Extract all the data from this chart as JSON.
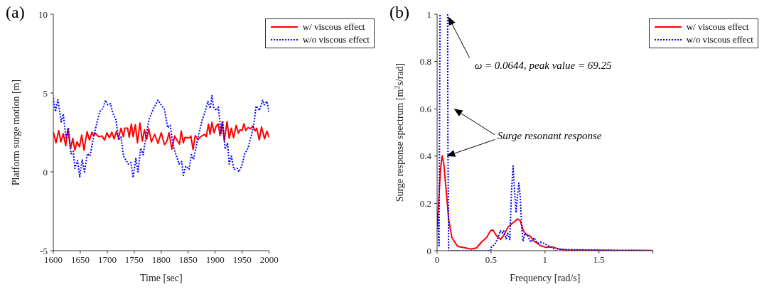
{
  "chart_data": [
    {
      "type": "line",
      "title": "(a)",
      "xlabel": "Time [sec]",
      "ylabel": "Platform surge motion [m]",
      "xlim": [
        1600,
        2000
      ],
      "xticks": [
        1600,
        1650,
        1700,
        1750,
        1800,
        1850,
        1900,
        1950,
        2000
      ],
      "ylim": [
        -5,
        10
      ],
      "yticks": [
        -5,
        0,
        5,
        10
      ],
      "grid": false,
      "legend": "top right",
      "marker": "none",
      "series": [
        {
          "name": "w/ viscous effect",
          "color": "#ff0000",
          "line_style": "solid",
          "x": [
            1600,
            1605,
            1610,
            1614,
            1618.5,
            1623,
            1627,
            1632,
            1636,
            1640,
            1644,
            1648.6,
            1652.6,
            1657,
            1662.6,
            1667,
            1671.7,
            1675,
            1678,
            1684,
            1690,
            1695,
            1699.5,
            1704,
            1708.5,
            1712.6,
            1717,
            1721,
            1725.5,
            1730,
            1732.5,
            1737.7,
            1740.7,
            1744.7,
            1748,
            1752,
            1756,
            1760.5,
            1765,
            1769,
            1773,
            1777,
            1781.7,
            1788,
            1794,
            1800,
            1806,
            1810.6,
            1814.5,
            1819.7,
            1825,
            1829,
            1834,
            1837,
            1841,
            1844,
            1853,
            1855,
            1859,
            1863,
            1868,
            1873,
            1880.5,
            1883.5,
            1887.5,
            1890.5,
            1894,
            1898,
            1902,
            1905.7,
            1909,
            1913,
            1917,
            1922,
            1926,
            1930,
            1934,
            1939,
            1943,
            1946,
            1949.5,
            1953.4,
            1956.5,
            1961,
            1965.6,
            1970,
            1974,
            1977,
            1981.7,
            1986,
            1991.4,
            1996,
            2000
          ],
          "values": [
            2.52,
            1.84,
            2.62,
            1.9,
            2.42,
            1.66,
            2.74,
            1.47,
            2.13,
            1.37,
            1.9,
            1.59,
            2.33,
            1.37,
            2.56,
            2.02,
            2.52,
            2.28,
            2.45,
            2.23,
            2.28,
            2.02,
            2.48,
            2.16,
            2.52,
            2.09,
            2.56,
            2.16,
            2.77,
            2.23,
            2.77,
            2.77,
            2.19,
            3.05,
            2.23,
            3.0,
            1.84,
            3.1,
            1.95,
            2.67,
            2.05,
            2.74,
            1.9,
            2.38,
            1.8,
            2.48,
            1.73,
            1.95,
            2.48,
            1.44,
            2.28,
            2.02,
            1.76,
            2.59,
            1.84,
            2.19,
            2.16,
            2.28,
            1.41,
            2.3,
            2.05,
            2.23,
            2.38,
            2.23,
            3.03,
            2.38,
            3.14,
            2.48,
            2.91,
            3.05,
            2.3,
            3.14,
            1.95,
            3.2,
            2.13,
            2.77,
            2.16,
            2.95,
            2.45,
            2.67,
            2.62,
            3.05,
            2.62,
            2.81,
            2.74,
            2.91,
            2.59,
            2.77,
            2.02,
            2.85,
            2.09,
            2.59,
            2.16
          ]
        },
        {
          "name": "w/o viscous effect",
          "color": "#0000ff",
          "line_style": "dotted",
          "x": [
            1600,
            1604,
            1608.5,
            1614.6,
            1618.5,
            1623.7,
            1628,
            1632.8,
            1637,
            1640,
            1645,
            1649,
            1653.5,
            1657.8,
            1663,
            1668,
            1675,
            1686,
            1692,
            1696.6,
            1701,
            1706,
            1710,
            1716,
            1721,
            1725.5,
            1730,
            1739,
            1744,
            1748,
            1753,
            1757,
            1762,
            1766.6,
            1772.6,
            1778,
            1786,
            1794,
            1800,
            1806,
            1812,
            1816.6,
            1822.7,
            1833,
            1838,
            1841,
            1845.5,
            1851.6,
            1856,
            1860,
            1867,
            1876,
            1882,
            1886.5,
            1891,
            1894,
            1897,
            1902,
            1906,
            1911,
            1914,
            1918.5,
            1923,
            1926,
            1930,
            1935,
            1941,
            1944,
            1949,
            1955,
            1961,
            1967,
            1971.6,
            1976,
            1982,
            1988,
            1991,
            1996,
            2000
          ],
          "values": [
            4.68,
            3.82,
            4.58,
            3.17,
            3.67,
            2.09,
            2.81,
            1.15,
            1.3,
            0.22,
            0.72,
            -0.32,
            0.75,
            0,
            1.15,
            1.0,
            2.3,
            3.82,
            4.03,
            4.54,
            4.25,
            4.32,
            3.75,
            3.31,
            2.02,
            2.23,
            1.0,
            0.5,
            0.6,
            -0.36,
            0.86,
            0,
            1.51,
            1.08,
            2.45,
            3.39,
            4.03,
            4.54,
            4.25,
            3.96,
            2.8,
            2.95,
            1.59,
            0.5,
            0.65,
            -0.22,
            0.36,
            0.17,
            1.08,
            0.79,
            2.02,
            3.31,
            3.89,
            4.47,
            4.03,
            4.83,
            4.11,
            3.89,
            4.11,
            2.45,
            3.24,
            1.44,
            1.8,
            0.5,
            1.0,
            0.14,
            0.22,
            0,
            0.36,
            1.15,
            1.51,
            2.3,
            3.03,
            4.18,
            3.89,
            4.54,
            4.25,
            4.47,
            3.75
          ]
        }
      ]
    },
    {
      "type": "line",
      "title": "(b)",
      "xlabel": "Frequency [rad/s]",
      "ylabel": "Surge response spectrum [m$^{2}$s/rad]",
      "xlim": [
        0,
        2
      ],
      "xticks": [
        0,
        0.5,
        1,
        1.5,
        {
          "value": 2,
          "label": null
        }
      ],
      "ylim": [
        0,
        1
      ],
      "yticks": [
        0,
        0.2,
        0.4,
        0.6,
        0.8,
        1
      ],
      "grid": false,
      "legend": "top right",
      "marker": "none",
      "annotations": [
        "ω = 0.0644, peak value = 69.25",
        "Surge resonant response"
      ],
      "series": [
        {
          "name": "w/ viscous effect",
          "color": "#ff0000",
          "line_style": "solid",
          "x": [
            0,
            0.015,
            0.03,
            0.046,
            0.061,
            0.084,
            0.107,
            0.137,
            0.19,
            0.26,
            0.32,
            0.366,
            0.41,
            0.457,
            0.495,
            0.518,
            0.549,
            0.587,
            0.617,
            0.655,
            0.701,
            0.747,
            0.77,
            0.8,
            0.823,
            0.861,
            0.9,
            0.96,
            1.006,
            1.067,
            1.128,
            1.2,
            1.4,
            1.7,
            2
          ],
          "values": [
            0.103,
            0.209,
            0.334,
            0.401,
            0.372,
            0.257,
            0.132,
            0.055,
            0.018,
            0.012,
            0.007,
            0.012,
            0.036,
            0.055,
            0.084,
            0.088,
            0.064,
            0.048,
            0.064,
            0.098,
            0.117,
            0.134,
            0.127,
            0.084,
            0.069,
            0.062,
            0.04,
            0.021,
            0.014,
            0.016,
            0.007,
            0.003,
            0.002,
            0.001,
            0.001
          ]
        },
        {
          "name": "w/o viscous effect",
          "color": "#0000ff",
          "line_style": "dotted",
          "x": [
            0,
            0.003,
            0.018,
            0.027,
            0.0644,
            0.097,
            0.1,
            0.107,
            0.3,
            0.495,
            0.503,
            0.534,
            0.564,
            0.587,
            0.602,
            0.617,
            0.64,
            0.655,
            0.674,
            0.689,
            0.704,
            0.716,
            0.732,
            0.744,
            0.758,
            0.77,
            0.785,
            0.796,
            0.815,
            0.838,
            0.869,
            0.9,
            0.93,
            0.96,
            0.99,
            1.03,
            1.07,
            1.1,
            1.12,
            1.15,
            1.27,
            1.57,
            1.97
          ],
          "values": [
            0.09,
            0.16,
            0.016,
            1,
            null,
            1,
            0.48,
            0,
            0,
            0,
            0.016,
            0.026,
            0.055,
            0.084,
            0.074,
            0.084,
            0.05,
            0.074,
            0.047,
            0.247,
            0.358,
            0.266,
            0.16,
            0.228,
            0.286,
            0.228,
            0.093,
            0.04,
            0.074,
            0.064,
            0.036,
            0.055,
            0.031,
            0.036,
            0.031,
            0.021,
            0.012,
            0,
            0.009,
            0.005,
            0.004,
            0.002,
            0.001
          ]
        }
      ]
    }
  ]
}
